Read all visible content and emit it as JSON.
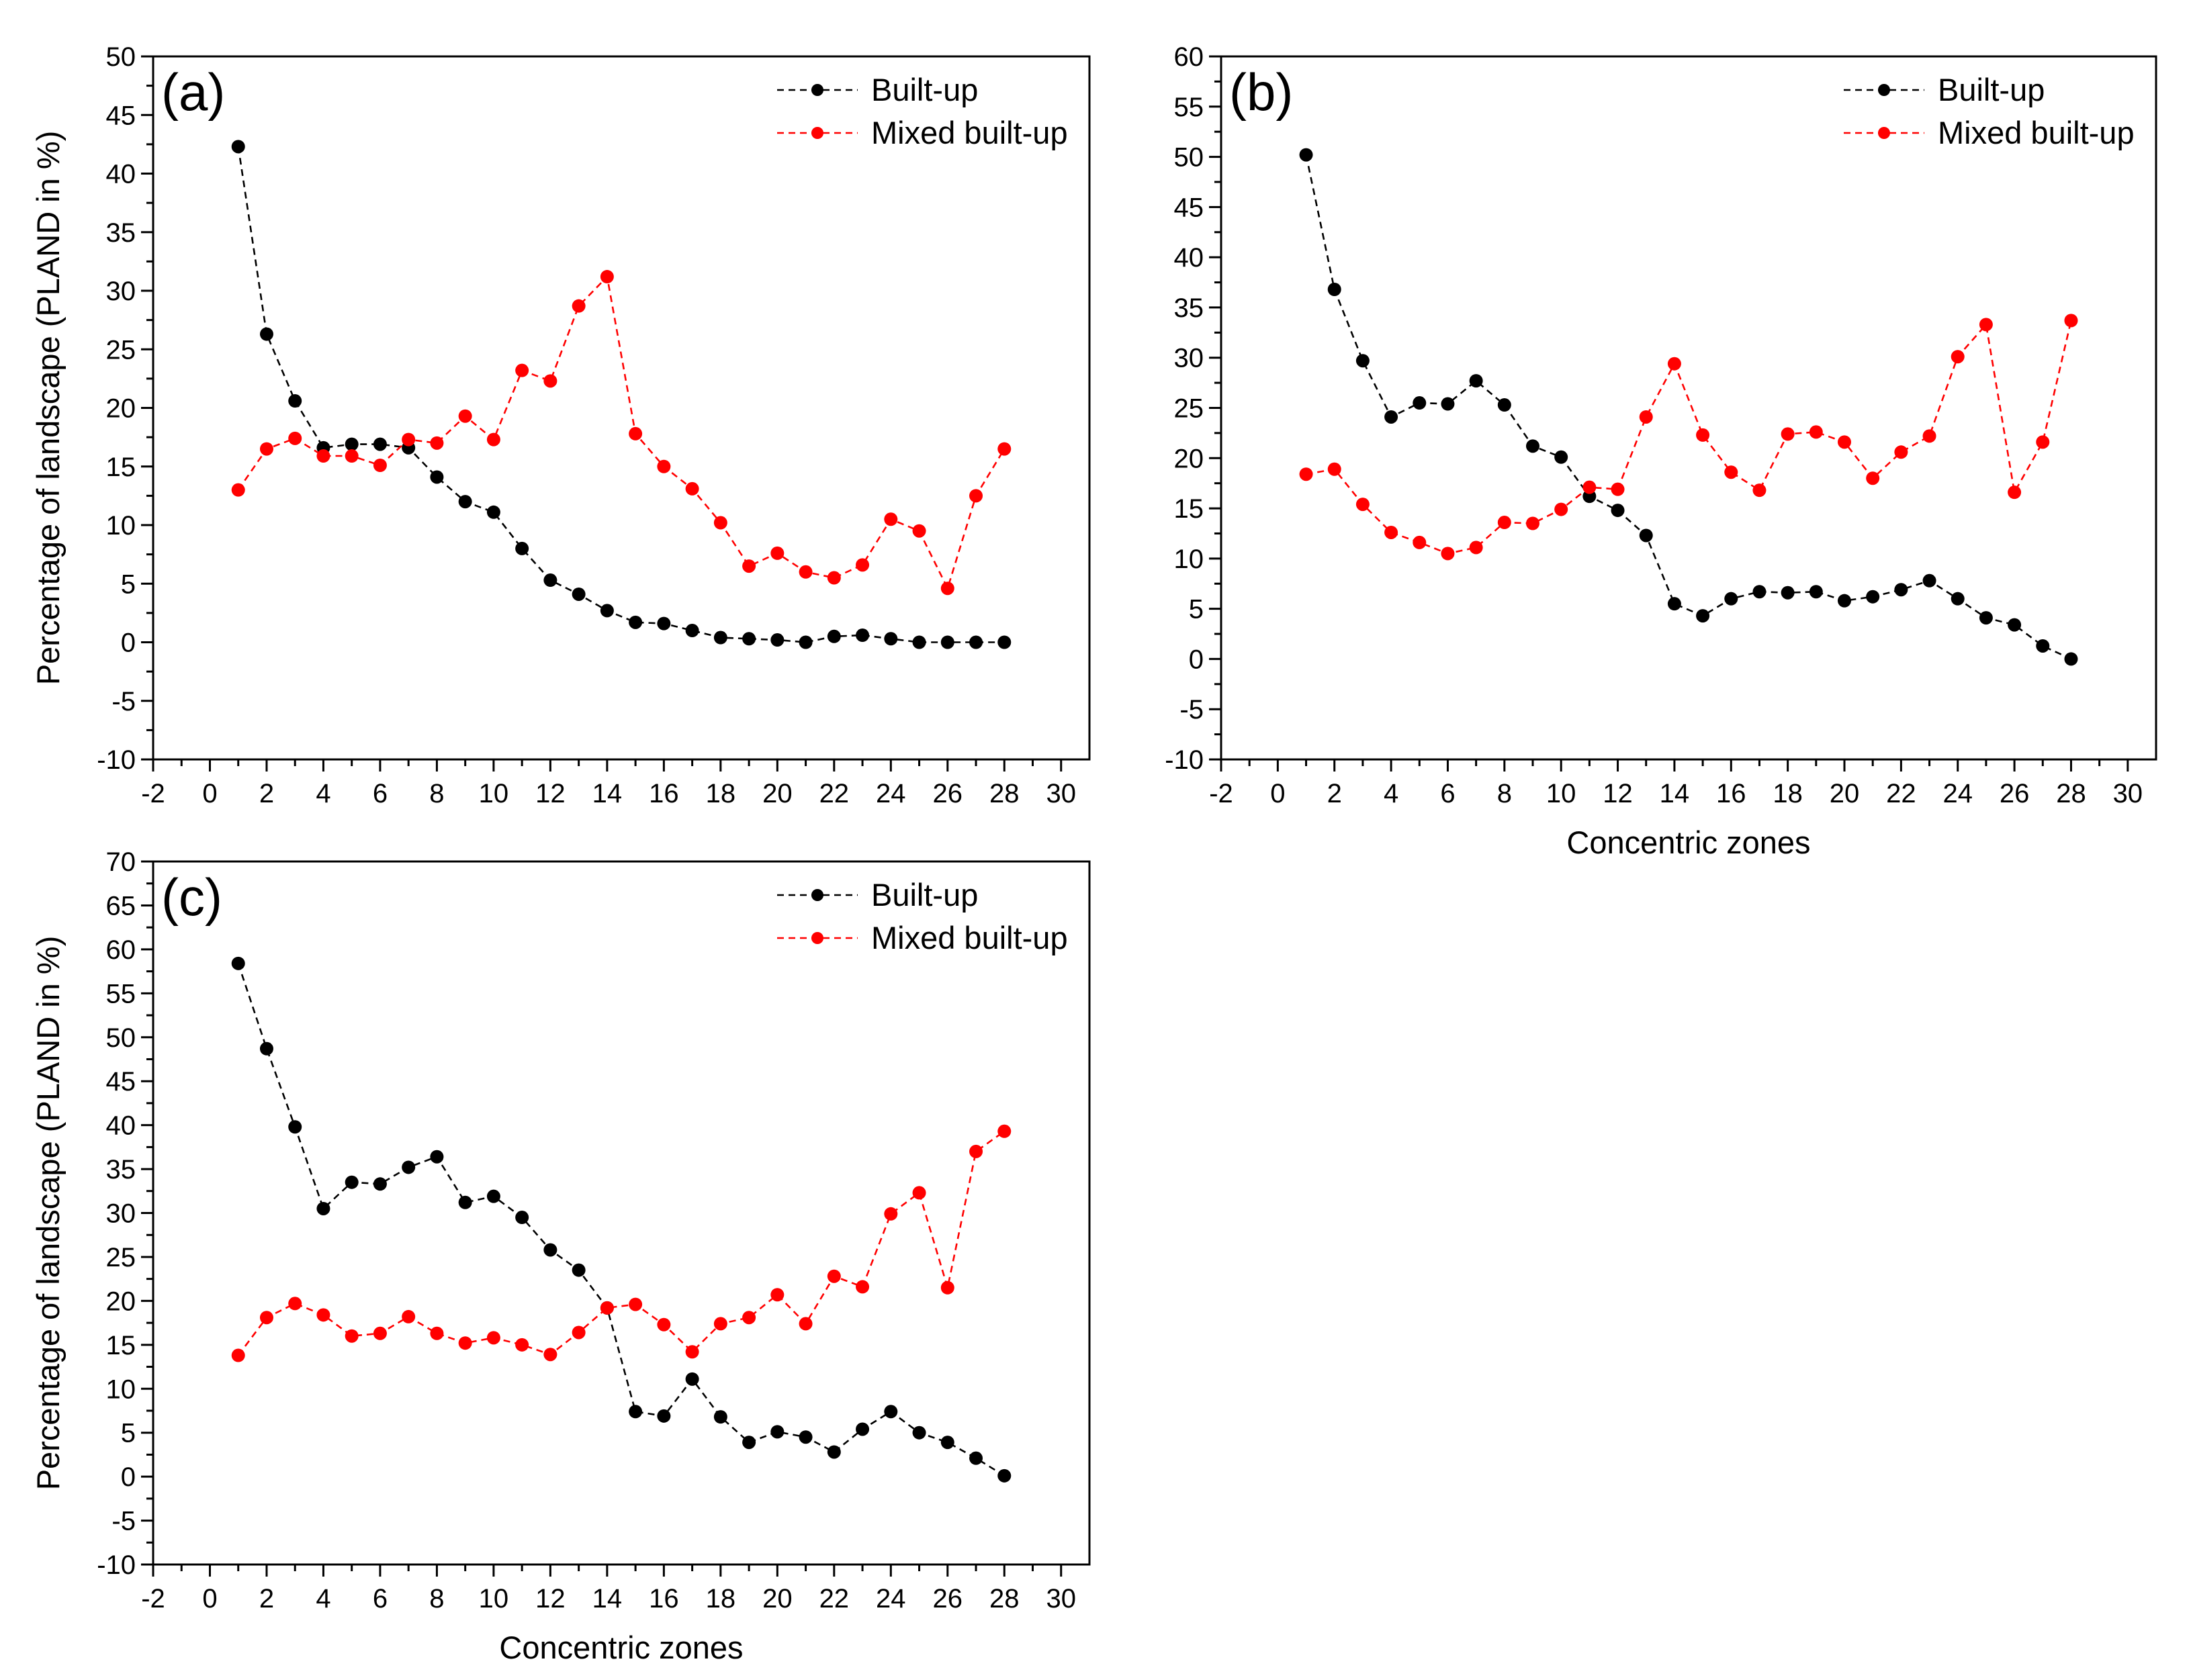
{
  "chart_data": [
    {
      "type": "line",
      "panel_label": "(a)",
      "xlabel": "",
      "ylabel": "Percentage of landscape (PLAND in %)",
      "xlim": [
        -2,
        31
      ],
      "ylim": [
        -10,
        50
      ],
      "xticks": [
        -2,
        0,
        2,
        4,
        6,
        8,
        10,
        12,
        14,
        16,
        18,
        20,
        22,
        24,
        26,
        28,
        30
      ],
      "yticks": [
        -10,
        -5,
        0,
        5,
        10,
        15,
        20,
        25,
        30,
        35,
        40,
        45,
        50
      ],
      "x": [
        1,
        2,
        3,
        4,
        5,
        6,
        7,
        8,
        9,
        10,
        11,
        12,
        13,
        14,
        15,
        16,
        17,
        18,
        19,
        20,
        21,
        22,
        23,
        24,
        25,
        26,
        27,
        28
      ],
      "legend_position": "top-right",
      "series": [
        {
          "name": "Built-up",
          "color": "#000000",
          "values": [
            42.3,
            26.3,
            20.6,
            16.6,
            16.9,
            16.9,
            16.6,
            14.1,
            12.0,
            11.1,
            8.0,
            5.3,
            4.1,
            2.7,
            1.7,
            1.6,
            1.0,
            0.4,
            0.3,
            0.2,
            0.0,
            0.5,
            0.6,
            0.3,
            0.0,
            0.0,
            0.0,
            0.0
          ]
        },
        {
          "name": "Mixed built-up",
          "color": "#ff0000",
          "values": [
            13.0,
            16.5,
            17.4,
            15.9,
            15.9,
            15.1,
            17.3,
            17.0,
            19.3,
            17.3,
            23.2,
            22.3,
            28.7,
            31.2,
            17.8,
            15.0,
            13.1,
            10.2,
            6.5,
            7.6,
            6.0,
            5.5,
            6.6,
            10.5,
            9.5,
            4.6,
            12.5,
            16.5
          ]
        }
      ]
    },
    {
      "type": "line",
      "panel_label": "(b)",
      "xlabel": "Concentric zones",
      "ylabel": "",
      "xlim": [
        -2,
        31
      ],
      "ylim": [
        -10,
        60
      ],
      "xticks": [
        -2,
        0,
        2,
        4,
        6,
        8,
        10,
        12,
        14,
        16,
        18,
        20,
        22,
        24,
        26,
        28,
        30
      ],
      "yticks": [
        -10,
        -5,
        0,
        5,
        10,
        15,
        20,
        25,
        30,
        35,
        40,
        45,
        50,
        55,
        60
      ],
      "x": [
        1,
        2,
        3,
        4,
        5,
        6,
        7,
        8,
        9,
        10,
        11,
        12,
        13,
        14,
        15,
        16,
        17,
        18,
        19,
        20,
        21,
        22,
        23,
        24,
        25,
        26,
        27,
        28
      ],
      "legend_position": "top-right",
      "series": [
        {
          "name": "Built-up",
          "color": "#000000",
          "values": [
            50.2,
            36.8,
            29.7,
            24.1,
            25.5,
            25.4,
            27.7,
            25.3,
            21.2,
            20.1,
            16.2,
            14.8,
            12.3,
            5.5,
            4.3,
            6.0,
            6.7,
            6.6,
            6.7,
            5.8,
            6.2,
            6.9,
            7.8,
            6.0,
            4.1,
            3.4,
            1.3,
            0.0
          ]
        },
        {
          "name": "Mixed built-up",
          "color": "#ff0000",
          "values": [
            18.4,
            18.9,
            15.4,
            12.6,
            11.6,
            10.5,
            11.1,
            13.6,
            13.5,
            14.9,
            17.1,
            16.9,
            24.1,
            29.4,
            22.3,
            18.6,
            16.8,
            22.4,
            22.6,
            21.6,
            18.0,
            20.6,
            22.2,
            30.1,
            33.3,
            16.6,
            21.6,
            33.7
          ]
        }
      ]
    },
    {
      "type": "line",
      "panel_label": "(c)",
      "xlabel": "Concentric zones",
      "ylabel": "Percentage of landscape (PLAND in %)",
      "xlim": [
        -2,
        31
      ],
      "ylim": [
        -10,
        70
      ],
      "xticks": [
        -2,
        0,
        2,
        4,
        6,
        8,
        10,
        12,
        14,
        16,
        18,
        20,
        22,
        24,
        26,
        28,
        30
      ],
      "yticks": [
        -10,
        -5,
        0,
        5,
        10,
        15,
        20,
        25,
        30,
        35,
        40,
        45,
        50,
        55,
        60,
        65,
        70
      ],
      "x": [
        1,
        2,
        3,
        4,
        5,
        6,
        7,
        8,
        9,
        10,
        11,
        12,
        13,
        14,
        15,
        16,
        17,
        18,
        19,
        20,
        21,
        22,
        23,
        24,
        25,
        26,
        27,
        28
      ],
      "legend_position": "top-right",
      "series": [
        {
          "name": "Built-up",
          "color": "#000000",
          "values": [
            58.4,
            48.7,
            39.8,
            30.5,
            33.5,
            33.3,
            35.2,
            36.4,
            31.2,
            31.9,
            29.5,
            25.8,
            23.5,
            19.2,
            7.4,
            6.9,
            11.1,
            6.8,
            3.9,
            5.1,
            4.5,
            2.8,
            5.4,
            7.4,
            5.0,
            3.9,
            2.1,
            0.1
          ]
        },
        {
          "name": "Mixed built-up",
          "color": "#ff0000",
          "values": [
            13.8,
            18.1,
            19.7,
            18.4,
            16.0,
            16.3,
            18.2,
            16.3,
            15.2,
            15.8,
            15.0,
            13.9,
            16.4,
            19.2,
            19.6,
            17.3,
            14.2,
            17.4,
            18.1,
            20.7,
            17.4,
            22.8,
            21.6,
            29.9,
            32.3,
            21.5,
            37.0,
            39.3
          ]
        }
      ]
    }
  ]
}
